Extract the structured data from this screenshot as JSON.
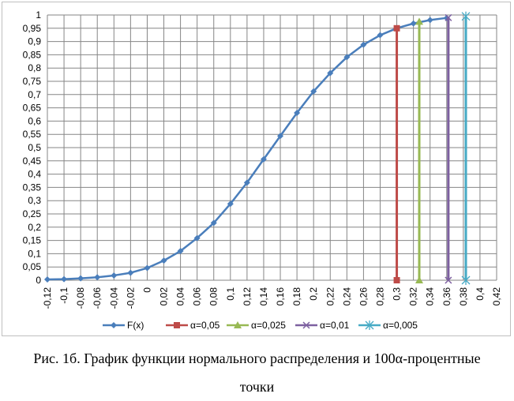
{
  "chart_data": {
    "type": "line",
    "title": "",
    "xlabel": "",
    "ylabel": "",
    "xlim": [
      -0.12,
      0.42
    ],
    "ylim": [
      0,
      1
    ],
    "x_ticks": [
      "-0,12",
      "-0,1",
      "-0,08",
      "-0,06",
      "-0,04",
      "-0,02",
      "0",
      "0,02",
      "0,04",
      "0,06",
      "0,08",
      "0,1",
      "0,12",
      "0,14",
      "0,16",
      "0,18",
      "0,2",
      "0,22",
      "0,24",
      "0,26",
      "0,28",
      "0,3",
      "0,32",
      "0,34",
      "0,36",
      "0,38",
      "0,4",
      "0,42"
    ],
    "y_ticks": [
      "0",
      "0,05",
      "0,1",
      "0,15",
      "0,2",
      "0,25",
      "0,3",
      "0,35",
      "0,4",
      "0,45",
      "0,5",
      "0,55",
      "0,6",
      "0,65",
      "0,7",
      "0,75",
      "0,8",
      "0,85",
      "0,9",
      "0,95",
      "1"
    ],
    "grid": true,
    "legend_position": "bottom",
    "series": [
      {
        "name": "F(x)",
        "color": "#4a7ebb",
        "marker": "diamond",
        "x": [
          -0.12,
          -0.1,
          -0.08,
          -0.06,
          -0.04,
          -0.02,
          0.0,
          0.02,
          0.04,
          0.06,
          0.08,
          0.1,
          0.12,
          0.14,
          0.16,
          0.18,
          0.2,
          0.22,
          0.24,
          0.26,
          0.28,
          0.3,
          0.32,
          0.34,
          0.36
        ],
        "y": [
          0.003,
          0.004,
          0.007,
          0.011,
          0.018,
          0.028,
          0.046,
          0.074,
          0.11,
          0.159,
          0.216,
          0.288,
          0.368,
          0.456,
          0.544,
          0.631,
          0.712,
          0.781,
          0.841,
          0.888,
          0.924,
          0.95,
          0.968,
          0.981,
          0.989
        ]
      },
      {
        "name": "α=0,05",
        "color": "#be4b48",
        "marker": "square",
        "x": [
          0.3,
          0.3
        ],
        "y": [
          0,
          0.95
        ]
      },
      {
        "name": "α=0,025",
        "color": "#98b954",
        "marker": "triangle",
        "x": [
          0.327,
          0.327
        ],
        "y": [
          0,
          0.975
        ]
      },
      {
        "name": "α=0,01",
        "color": "#7d60a0",
        "marker": "x",
        "x": [
          0.362,
          0.362
        ],
        "y": [
          0,
          0.99
        ]
      },
      {
        "name": "α=0,005",
        "color": "#46aac5",
        "marker": "star",
        "x": [
          0.383,
          0.383
        ],
        "y": [
          0,
          0.995
        ]
      }
    ]
  },
  "caption": {
    "line1": "Рис. 1б. График функции нормального распределения и 100α-процентные",
    "line2": "точки"
  }
}
